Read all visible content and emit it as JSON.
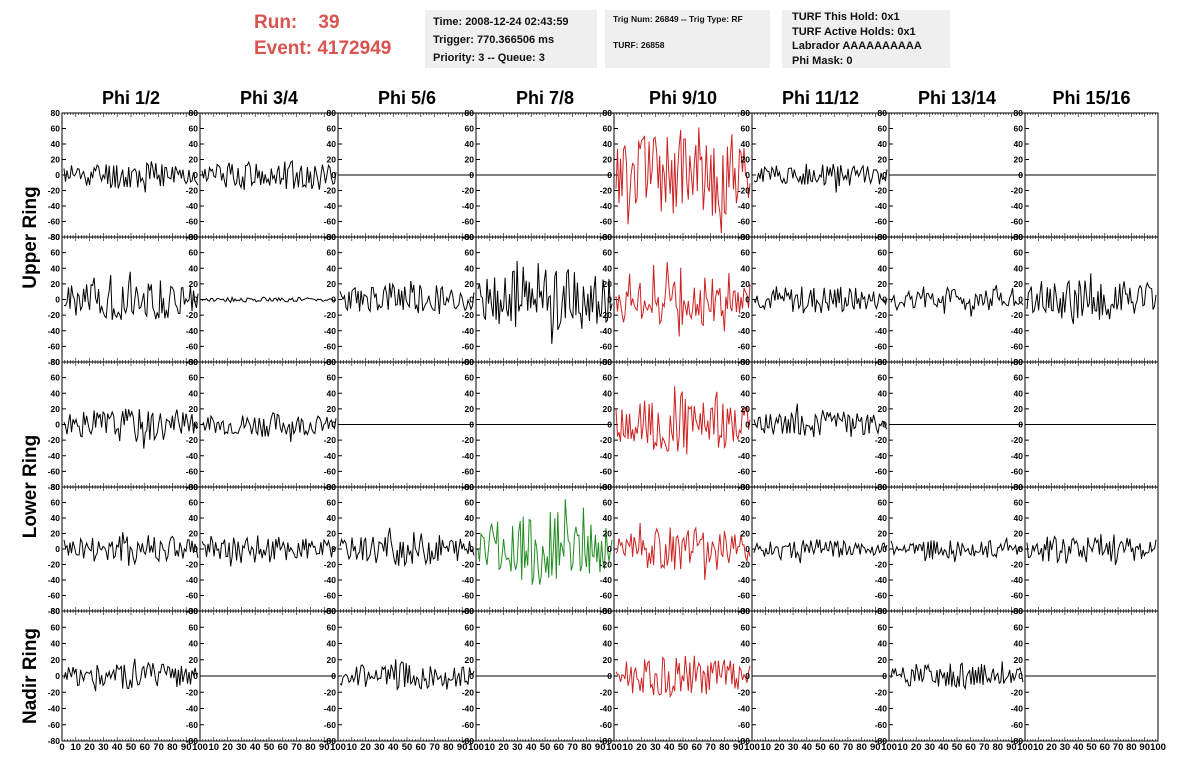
{
  "header": {
    "run_label": "Run:",
    "run_value": "39",
    "event_label": "Event:",
    "event_value": "4172949",
    "time_line": "Time: 2008-12-24 02:43:59",
    "trigger_line": "Trigger: 770.366506 ms",
    "priority_line": "Priority: 3 -- Queue: 3",
    "trig_line": "Trig Num: 26849 -- Trig Type: RF",
    "turf_line": "TURF: 26858",
    "turf_this_hold": "TURF This Hold: 0x1",
    "turf_active_holds": "TURF Active Holds: 0x1",
    "labrador": "Labrador AAAAAAAAAA",
    "phi_mask": "Phi Mask: 0"
  },
  "colors": {
    "default_trace": "#000000",
    "highlight_red": "#cc2222",
    "highlight_green": "#228b22",
    "run_text": "#d9534f",
    "info_bg": "#efefef"
  },
  "chart_data": {
    "type": "line",
    "columns": [
      "Phi 1/2",
      "Phi 3/4",
      "Phi 5/6",
      "Phi 7/8",
      "Phi 9/10",
      "Phi 11/12",
      "Phi 13/14",
      "Phi 15/16"
    ],
    "row_groups": [
      {
        "label": "Upper Ring",
        "rows": [
          0,
          1
        ]
      },
      {
        "label": "Lower Ring",
        "rows": [
          2,
          3
        ]
      },
      {
        "label": "Nadir Ring",
        "rows": [
          4
        ]
      }
    ],
    "ylim": [
      -80,
      80
    ],
    "yticks": [
      80,
      60,
      40,
      20,
      0,
      -20,
      -40,
      -60,
      -80
    ],
    "xlim": [
      0,
      100
    ],
    "xticks": [
      0,
      10,
      20,
      30,
      40,
      50,
      60,
      70,
      80,
      90,
      100
    ],
    "samples": 90,
    "panels": [
      [
        {
          "amp": 12,
          "color": "black",
          "seed": 11
        },
        {
          "amp": 13,
          "color": "black",
          "seed": 12
        },
        {
          "amp": 0,
          "color": "black",
          "seed": 13
        },
        {
          "amp": 0,
          "color": "black",
          "seed": 14
        },
        {
          "amp": 40,
          "color": "red",
          "seed": 15
        },
        {
          "amp": 10,
          "color": "black",
          "seed": 16
        },
        {
          "amp": 0,
          "color": "black",
          "seed": 17
        },
        {
          "amp": 0,
          "color": "black",
          "seed": 18
        }
      ],
      [
        {
          "amp": 18,
          "color": "black",
          "seed": 21
        },
        {
          "amp": 2,
          "color": "black",
          "seed": 22
        },
        {
          "amp": 14,
          "color": "black",
          "seed": 23
        },
        {
          "amp": 28,
          "color": "black",
          "seed": 24
        },
        {
          "amp": 22,
          "color": "red",
          "seed": 25
        },
        {
          "amp": 12,
          "color": "black",
          "seed": 26
        },
        {
          "amp": 10,
          "color": "black",
          "seed": 27
        },
        {
          "amp": 18,
          "color": "black",
          "seed": 28
        }
      ],
      [
        {
          "amp": 14,
          "color": "black",
          "seed": 31
        },
        {
          "amp": 10,
          "color": "black",
          "seed": 32
        },
        {
          "amp": 0,
          "color": "black",
          "seed": 33
        },
        {
          "amp": 0,
          "color": "black",
          "seed": 34
        },
        {
          "amp": 24,
          "color": "red",
          "seed": 35
        },
        {
          "amp": 12,
          "color": "black",
          "seed": 36
        },
        {
          "amp": 0,
          "color": "black",
          "seed": 37
        },
        {
          "amp": 0,
          "color": "black",
          "seed": 38
        }
      ],
      [
        {
          "amp": 14,
          "color": "black",
          "seed": 41
        },
        {
          "amp": 12,
          "color": "black",
          "seed": 42
        },
        {
          "amp": 14,
          "color": "black",
          "seed": 43
        },
        {
          "amp": 30,
          "color": "green",
          "seed": 44
        },
        {
          "amp": 18,
          "color": "red",
          "seed": 45
        },
        {
          "amp": 8,
          "color": "black",
          "seed": 46
        },
        {
          "amp": 8,
          "color": "black",
          "seed": 47
        },
        {
          "amp": 14,
          "color": "black",
          "seed": 48
        }
      ],
      [
        {
          "amp": 12,
          "color": "black",
          "seed": 51
        },
        {
          "amp": 0,
          "color": "black",
          "seed": 52
        },
        {
          "amp": 11,
          "color": "black",
          "seed": 53
        },
        {
          "amp": 0,
          "color": "black",
          "seed": 54
        },
        {
          "amp": 16,
          "color": "red",
          "seed": 55
        },
        {
          "amp": 0,
          "color": "black",
          "seed": 56
        },
        {
          "amp": 10,
          "color": "black",
          "seed": 57
        },
        {
          "amp": 0,
          "color": "black",
          "seed": 58
        }
      ]
    ]
  }
}
